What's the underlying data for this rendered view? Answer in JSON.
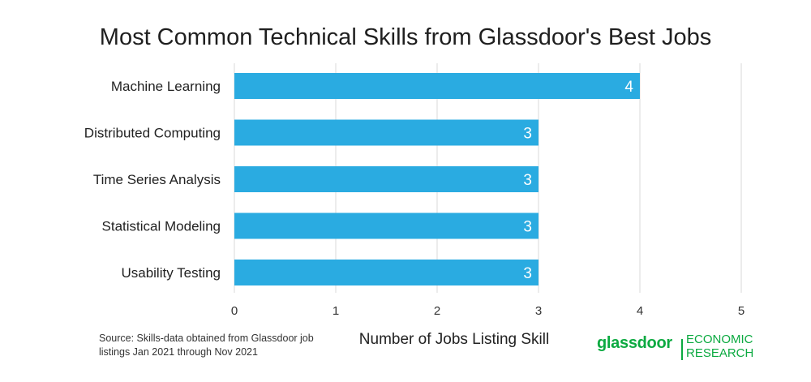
{
  "chart_data": {
    "type": "bar",
    "orientation": "horizontal",
    "title": "Most Common Technical Skills from Glassdoor's Best Jobs",
    "xlabel": "Number of Jobs Listing Skill",
    "ylabel": "",
    "categories": [
      "Machine Learning",
      "Distributed Computing",
      "Time Series Analysis",
      "Statistical Modeling",
      "Usability Testing"
    ],
    "values": [
      4,
      3,
      3,
      3,
      3
    ],
    "xlim": [
      0,
      5
    ],
    "xticks": [
      "0",
      "1",
      "2",
      "3",
      "4",
      "5"
    ],
    "grid": "vertical",
    "bar_color": "#2aabe1",
    "data_labels": true
  },
  "footer": {
    "source_line1": "Source: Skills-data obtained from Glassdoor job",
    "source_line2": "listings Jan 2021 through Nov 2021",
    "logo_word": "glassdoor",
    "logo_sub1": "ECONOMIC",
    "logo_sub2": "RESEARCH"
  },
  "colors": {
    "bar": "#2aabe1",
    "grid": "#d9d9d9",
    "brand": "#0caa41"
  }
}
